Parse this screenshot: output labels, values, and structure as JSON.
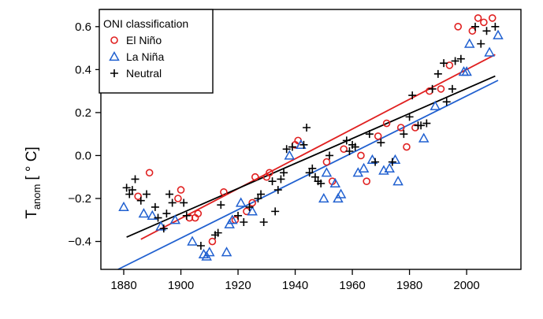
{
  "chart_data": {
    "type": "scatter",
    "ylabel_main": "T",
    "ylabel_sub": "anom",
    "ylabel_unit": "[ ° C]",
    "xlim": [
      1872,
      2019
    ],
    "ylim": [
      -0.53,
      0.68
    ],
    "x_ticks": [
      1880,
      1900,
      1920,
      1940,
      1960,
      1980,
      2000
    ],
    "y_ticks": [
      -0.4,
      -0.2,
      0.0,
      0.2,
      0.4,
      0.6
    ],
    "y_tick_labels": [
      "−0.4",
      "−0.2",
      "0.0",
      "0.2",
      "0.4",
      "0.6"
    ],
    "grid": false,
    "legend": {
      "title": "ONI classification",
      "position": "top-left",
      "entries": [
        {
          "name": "El Niño",
          "marker": "circle",
          "color": "#e02020"
        },
        {
          "name": "La Niña",
          "marker": "triangle",
          "color": "#2060d0"
        },
        {
          "name": "Neutral",
          "marker": "plus",
          "color": "#000000"
        }
      ]
    },
    "series": [
      {
        "name": "El Niño",
        "marker": "circle",
        "color": "#e02020",
        "points": [
          [
            1885,
            -0.19
          ],
          [
            1889,
            -0.08
          ],
          [
            1899,
            -0.2
          ],
          [
            1900,
            -0.16
          ],
          [
            1903,
            -0.29
          ],
          [
            1905,
            -0.29
          ],
          [
            1906,
            -0.27
          ],
          [
            1911,
            -0.4
          ],
          [
            1915,
            -0.17
          ],
          [
            1919,
            -0.3
          ],
          [
            1923,
            -0.26
          ],
          [
            1925,
            -0.22
          ],
          [
            1926,
            -0.1
          ],
          [
            1930,
            -0.1
          ],
          [
            1931,
            -0.08
          ],
          [
            1940,
            0.05
          ],
          [
            1941,
            0.07
          ],
          [
            1951,
            -0.03
          ],
          [
            1953,
            -0.12
          ],
          [
            1957,
            0.03
          ],
          [
            1963,
            0.0
          ],
          [
            1965,
            -0.12
          ],
          [
            1969,
            0.09
          ],
          [
            1972,
            0.15
          ],
          [
            1977,
            0.13
          ],
          [
            1979,
            0.04
          ],
          [
            1982,
            0.13
          ],
          [
            1987,
            0.3
          ],
          [
            1991,
            0.31
          ],
          [
            1994,
            0.42
          ],
          [
            1997,
            0.6
          ],
          [
            2002,
            0.58
          ],
          [
            2004,
            0.64
          ],
          [
            2006,
            0.62
          ],
          [
            2009,
            0.64
          ]
        ]
      },
      {
        "name": "La Niña",
        "marker": "triangle",
        "color": "#2060d0",
        "points": [
          [
            1880,
            -0.24
          ],
          [
            1887,
            -0.27
          ],
          [
            1890,
            -0.28
          ],
          [
            1893,
            -0.33
          ],
          [
            1898,
            -0.3
          ],
          [
            1904,
            -0.4
          ],
          [
            1908,
            -0.46
          ],
          [
            1909,
            -0.47
          ],
          [
            1910,
            -0.45
          ],
          [
            1916,
            -0.45
          ],
          [
            1917,
            -0.32
          ],
          [
            1918,
            -0.3
          ],
          [
            1921,
            -0.22
          ],
          [
            1925,
            -0.26
          ],
          [
            1938,
            0.0
          ],
          [
            1942,
            0.05
          ],
          [
            1950,
            -0.2
          ],
          [
            1951,
            -0.08
          ],
          [
            1954,
            -0.13
          ],
          [
            1955,
            -0.2
          ],
          [
            1956,
            -0.18
          ],
          [
            1962,
            -0.08
          ],
          [
            1964,
            -0.06
          ],
          [
            1967,
            -0.02
          ],
          [
            1971,
            -0.07
          ],
          [
            1973,
            -0.06
          ],
          [
            1975,
            -0.02
          ],
          [
            1976,
            -0.12
          ],
          [
            1985,
            0.08
          ],
          [
            1989,
            0.23
          ],
          [
            1999,
            0.39
          ],
          [
            2000,
            0.39
          ],
          [
            2001,
            0.52
          ],
          [
            2008,
            0.48
          ],
          [
            2011,
            0.56
          ]
        ]
      },
      {
        "name": "Neutral",
        "marker": "plus",
        "color": "#000000",
        "points": [
          [
            1881,
            -0.15
          ],
          [
            1882,
            -0.18
          ],
          [
            1883,
            -0.16
          ],
          [
            1884,
            -0.11
          ],
          [
            1886,
            -0.21
          ],
          [
            1888,
            -0.18
          ],
          [
            1891,
            -0.24
          ],
          [
            1892,
            -0.29
          ],
          [
            1894,
            -0.34
          ],
          [
            1895,
            -0.27
          ],
          [
            1896,
            -0.18
          ],
          [
            1897,
            -0.22
          ],
          [
            1901,
            -0.22
          ],
          [
            1902,
            -0.28
          ],
          [
            1907,
            -0.42
          ],
          [
            1912,
            -0.37
          ],
          [
            1913,
            -0.36
          ],
          [
            1914,
            -0.23
          ],
          [
            1920,
            -0.28
          ],
          [
            1922,
            -0.31
          ],
          [
            1924,
            -0.24
          ],
          [
            1927,
            -0.2
          ],
          [
            1928,
            -0.18
          ],
          [
            1929,
            -0.31
          ],
          [
            1932,
            -0.12
          ],
          [
            1933,
            -0.26
          ],
          [
            1934,
            -0.16
          ],
          [
            1935,
            -0.11
          ],
          [
            1936,
            -0.08
          ],
          [
            1937,
            0.03
          ],
          [
            1939,
            0.04
          ],
          [
            1943,
            0.05
          ],
          [
            1944,
            0.13
          ],
          [
            1945,
            -0.08
          ],
          [
            1946,
            -0.06
          ],
          [
            1947,
            -0.1
          ],
          [
            1948,
            -0.12
          ],
          [
            1949,
            -0.13
          ],
          [
            1952,
            0.0
          ],
          [
            1958,
            0.07
          ],
          [
            1959,
            0.02
          ],
          [
            1960,
            0.05
          ],
          [
            1961,
            0.04
          ],
          [
            1966,
            0.1
          ],
          [
            1968,
            -0.03
          ],
          [
            1970,
            0.06
          ],
          [
            1974,
            -0.03
          ],
          [
            1978,
            0.1
          ],
          [
            1980,
            0.18
          ],
          [
            1981,
            0.28
          ],
          [
            1983,
            0.14
          ],
          [
            1984,
            0.14
          ],
          [
            1986,
            0.15
          ],
          [
            1988,
            0.31
          ],
          [
            1990,
            0.38
          ],
          [
            1992,
            0.43
          ],
          [
            1993,
            0.25
          ],
          [
            1995,
            0.31
          ],
          [
            1996,
            0.44
          ],
          [
            1998,
            0.45
          ],
          [
            2003,
            0.6
          ],
          [
            2005,
            0.52
          ],
          [
            2007,
            0.58
          ],
          [
            2010,
            0.6
          ]
        ]
      }
    ],
    "trend_lines": [
      {
        "name": "El Niño",
        "color": "#e02020",
        "x": [
          1886,
          2010
        ],
        "y": [
          -0.39,
          0.47
        ]
      },
      {
        "name": "La Niña",
        "color": "#2060d0",
        "x": [
          1878,
          2011
        ],
        "y": [
          -0.53,
          0.35
        ]
      },
      {
        "name": "Neutral",
        "color": "#000000",
        "x": [
          1881,
          2010
        ],
        "y": [
          -0.38,
          0.37
        ]
      }
    ]
  }
}
